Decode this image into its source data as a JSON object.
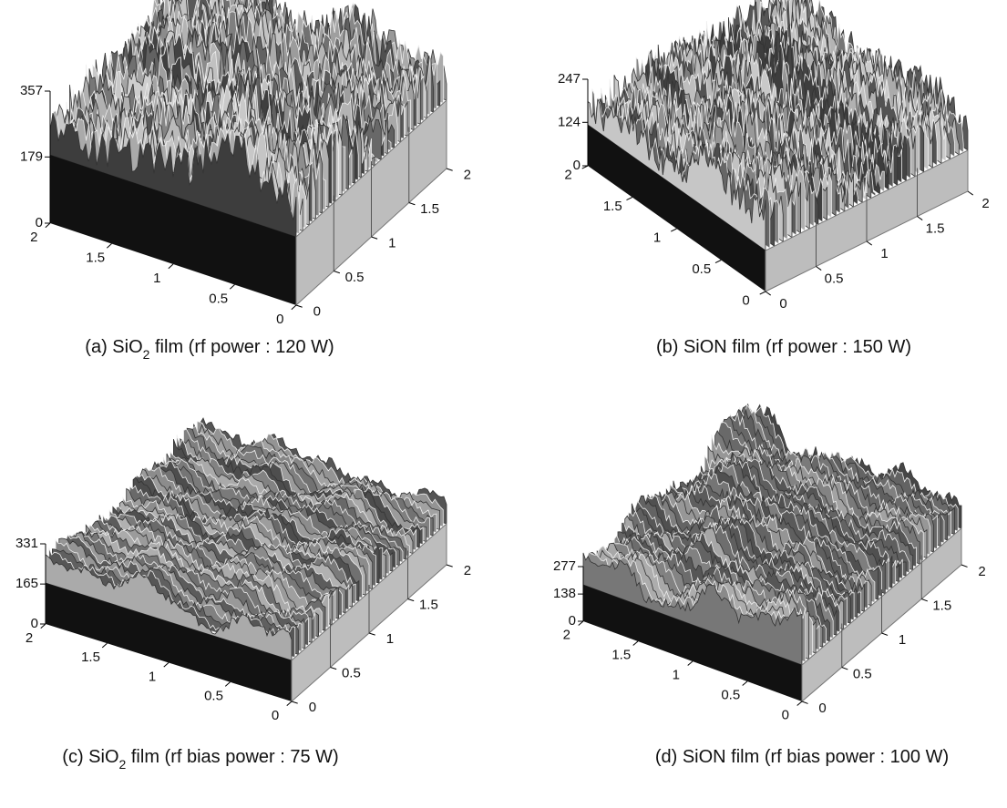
{
  "figure": {
    "panels": [
      {
        "zlim": [
          0,
          357
        ],
        "zticks": [
          0,
          179,
          357
        ],
        "xlim": [
          0,
          2
        ],
        "xticks": [
          0,
          0.5,
          1,
          1.5,
          2
        ],
        "ylim": [
          0,
          2
        ],
        "yticks": [
          0,
          0.5,
          1,
          1.5,
          2
        ],
        "caption": {
          "start": "(a) SiO",
          "sub": "2",
          "end": " film (rf power : 120 W)"
        }
      },
      {
        "zlim": [
          0,
          247
        ],
        "zticks": [
          0,
          124,
          247
        ],
        "xlim": [
          0,
          2
        ],
        "xticks": [
          0,
          0.5,
          1,
          1.5,
          2
        ],
        "ylim": [
          0,
          2
        ],
        "yticks": [
          0,
          0.5,
          1,
          1.5,
          2
        ],
        "caption": {
          "start": "(b) SiON film (rf power : 150 W)"
        }
      },
      {
        "zlim": [
          0,
          331
        ],
        "zticks": [
          0,
          165,
          331
        ],
        "xlim": [
          0,
          2
        ],
        "xticks": [
          0,
          0.5,
          1,
          1.5,
          2
        ],
        "ylim": [
          0,
          2
        ],
        "yticks": [
          0,
          0.5,
          1,
          1.5,
          2
        ],
        "caption": {
          "start": "(c) SiO",
          "sub": "2",
          "end": " film (rf bias power : 75 W)"
        }
      },
      {
        "zlim": [
          0,
          277
        ],
        "zticks": [
          0,
          138,
          277
        ],
        "xlim": [
          0,
          2
        ],
        "xticks": [
          0,
          0.5,
          1,
          1.5,
          2
        ],
        "ylim": [
          0,
          2
        ],
        "yticks": [
          0,
          0.5,
          1,
          1.5,
          2
        ],
        "caption": {
          "start": "(d) SiON film (rf bias power : 100 W)"
        }
      }
    ]
  }
}
